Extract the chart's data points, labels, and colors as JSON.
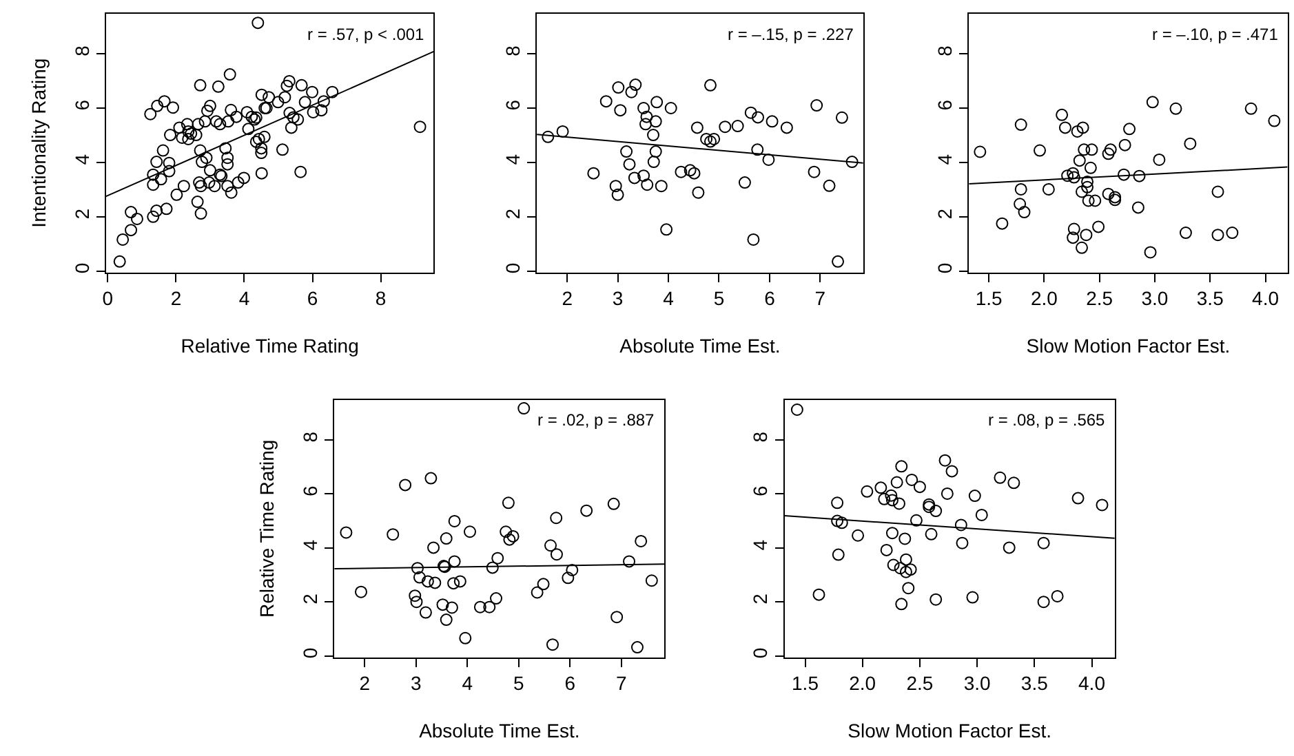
{
  "chart_data": [
    {
      "type": "scatter",
      "xlabel": "Relative Time Rating",
      "ylabel": "Intentionality Rating",
      "annotations": [
        "r = .57, p < .001"
      ],
      "marker": "circle",
      "grid": false,
      "xlim": [
        -0.05,
        9.55
      ],
      "ylim": [
        -0.05,
        9.48
      ],
      "xticks": [
        0,
        2,
        4,
        6,
        8
      ],
      "yticks": [
        0,
        2,
        4,
        6,
        8
      ],
      "series": [
        {
          "type": "scatter",
          "color": "#000000",
          "x": [
            0.35,
            0.44,
            0.68,
            0.68,
            0.86,
            1.25,
            1.33,
            1.33,
            1.33,
            1.43,
            1.43,
            1.45,
            1.56,
            1.62,
            1.66,
            1.72,
            1.8,
            1.8,
            1.83,
            1.91,
            2.02,
            2.1,
            2.18,
            2.23,
            2.33,
            2.36,
            2.36,
            2.44,
            2.59,
            2.63,
            2.65,
            2.71,
            2.71,
            2.73,
            2.68,
            2.73,
            2.76,
            2.85,
            2.89,
            2.92,
            2.97,
            3.0,
            3.0,
            3.13,
            3.24,
            3.18,
            3.29,
            3.29,
            3.33,
            3.45,
            3.51,
            3.53,
            3.51,
            3.51,
            3.58,
            3.61,
            3.62,
            3.77,
            3.82,
            3.99,
            4.08,
            4.12,
            4.22,
            4.3,
            4.35,
            4.4,
            4.35,
            4.43,
            4.51,
            4.5,
            4.5,
            4.51,
            4.59,
            4.6,
            4.65,
            4.72,
            4.99,
            5.12,
            5.19,
            5.25,
            5.32,
            5.33,
            5.38,
            5.44,
            5.57,
            5.65,
            5.68,
            5.78,
            5.99,
            6.02,
            6.26,
            6.33,
            6.58,
            9.15
          ],
          "values": [
            0.35,
            1.16,
            1.51,
            2.17,
            1.92,
            5.78,
            3.18,
            3.55,
            2.0,
            4.02,
            2.22,
            6.08,
            3.38,
            4.44,
            6.25,
            2.29,
            3.68,
            3.98,
            5.01,
            6.02,
            2.81,
            5.28,
            4.91,
            3.13,
            5.41,
            5.14,
            4.86,
            5.06,
            5.01,
            2.55,
            5.41,
            4.44,
            6.84,
            2.12,
            3.26,
            3.13,
            4.02,
            5.51,
            4.17,
            5.9,
            3.26,
            6.08,
            3.71,
            3.13,
            6.79,
            5.51,
            5.41,
            3.55,
            3.5,
            4.52,
            3.13,
            5.51,
            4.17,
            3.93,
            7.24,
            5.93,
            2.89,
            5.68,
            3.26,
            3.43,
            5.85,
            5.23,
            5.68,
            5.58,
            5.65,
            9.14,
            4.76,
            4.86,
            6.49,
            4.52,
            4.35,
            3.6,
            4.94,
            6.0,
            6.0,
            6.4,
            6.22,
            4.47,
            6.4,
            6.82,
            6.99,
            5.82,
            5.28,
            5.66,
            5.58,
            3.65,
            6.84,
            6.22,
            6.59,
            5.85,
            5.92,
            6.25,
            6.59,
            5.31
          ]
        },
        {
          "type": "line",
          "color": "#000000",
          "marker": "none",
          "x": [
            -0.05,
            9.55
          ],
          "values": [
            2.75,
            8.08
          ]
        }
      ]
    },
    {
      "type": "scatter",
      "xlabel": "Absolute Time Est.",
      "annotations": [
        "r = –.15, p = .227"
      ],
      "marker": "circle",
      "grid": false,
      "xlim": [
        1.4,
        7.85
      ],
      "ylim": [
        -0.05,
        9.48
      ],
      "xticks": [
        2,
        3,
        4,
        5,
        6,
        7
      ],
      "yticks": [
        0,
        2,
        4,
        6,
        8
      ],
      "series": [
        {
          "type": "scatter",
          "color": "#000000",
          "x": [
            1.62,
            1.91,
            2.52,
            2.77,
            2.96,
            3.0,
            3.01,
            3.05,
            3.17,
            3.23,
            3.27,
            3.33,
            3.35,
            3.51,
            3.51,
            3.57,
            3.55,
            3.58,
            3.7,
            3.71,
            3.75,
            3.75,
            3.77,
            3.86,
            3.96,
            4.05,
            4.25,
            4.43,
            4.51,
            4.57,
            4.59,
            4.75,
            4.83,
            4.83,
            4.9,
            5.12,
            5.37,
            5.51,
            5.63,
            5.68,
            5.77,
            5.76,
            5.98,
            6.05,
            6.34,
            6.88,
            6.93,
            7.18,
            7.35,
            7.43,
            7.63
          ],
          "values": [
            4.94,
            5.14,
            3.6,
            6.25,
            3.13,
            2.81,
            6.76,
            5.92,
            4.4,
            3.93,
            6.59,
            3.43,
            6.86,
            6.0,
            3.51,
            5.68,
            5.41,
            3.18,
            5.01,
            4.02,
            4.4,
            5.51,
            6.22,
            3.13,
            1.53,
            6.0,
            3.65,
            3.71,
            3.6,
            5.28,
            2.89,
            4.86,
            6.84,
            4.77,
            4.86,
            5.31,
            5.34,
            3.26,
            5.83,
            1.16,
            5.66,
            4.47,
            4.1,
            5.51,
            5.28,
            3.65,
            6.1,
            3.14,
            0.35,
            5.65,
            4.02
          ]
        },
        {
          "type": "line",
          "color": "#000000",
          "marker": "none",
          "x": [
            1.4,
            7.85
          ],
          "values": [
            5.03,
            3.98
          ]
        }
      ]
    },
    {
      "type": "scatter",
      "xlabel": "Slow Motion Factor Est.",
      "annotations": [
        "r = –.10, p = .471"
      ],
      "marker": "circle",
      "grid": false,
      "xlim": [
        1.32,
        4.2
      ],
      "ylim": [
        -0.05,
        9.48
      ],
      "xticks": [
        1.5,
        {
          "value": 2,
          "label": "2.0"
        },
        2.5,
        {
          "value": 3,
          "label": "3.0"
        },
        3.5,
        {
          "value": 4,
          "label": "4.0"
        }
      ],
      "yticks": [
        0,
        2,
        4,
        6,
        8
      ],
      "series": [
        {
          "type": "scatter",
          "color": "#000000",
          "x": [
            1.42,
            1.62,
            1.79,
            1.79,
            1.78,
            1.82,
            1.96,
            2.04,
            2.16,
            2.19,
            2.21,
            2.26,
            2.27,
            2.3,
            2.35,
            2.32,
            2.27,
            2.26,
            2.34,
            2.34,
            2.36,
            2.39,
            2.39,
            2.38,
            2.43,
            2.42,
            2.4,
            2.46,
            2.49,
            2.58,
            2.58,
            2.6,
            2.64,
            2.64,
            2.73,
            2.72,
            2.77,
            2.85,
            2.86,
            2.96,
            2.98,
            3.04,
            3.19,
            3.28,
            3.32,
            3.57,
            3.57,
            3.7,
            3.87,
            4.08
          ],
          "values": [
            4.39,
            1.75,
            5.39,
            3.01,
            2.47,
            2.17,
            4.44,
            3.01,
            5.75,
            5.28,
            3.51,
            3.6,
            3.45,
            5.14,
            5.28,
            4.07,
            1.55,
            1.23,
            2.92,
            0.86,
            4.47,
            3.29,
            3.09,
            1.33,
            4.47,
            3.8,
            2.59,
            2.59,
            1.63,
            2.84,
            4.32,
            4.47,
            2.72,
            2.62,
            4.64,
            3.55,
            5.23,
            2.34,
            3.5,
            0.69,
            6.22,
            4.1,
            5.98,
            1.41,
            4.69,
            2.92,
            1.33,
            1.41,
            5.98,
            5.53
          ]
        },
        {
          "type": "line",
          "color": "#000000",
          "marker": "none",
          "x": [
            1.32,
            4.2
          ],
          "values": [
            3.21,
            3.83
          ]
        }
      ]
    },
    {
      "type": "scatter",
      "xlabel": "Absolute Time Est.",
      "ylabel": "Relative Time Rating",
      "annotations": [
        "r = .02, p = .887"
      ],
      "marker": "circle",
      "grid": false,
      "xlim": [
        1.41,
        7.84
      ],
      "ylim": [
        -0.05,
        9.48
      ],
      "xticks": [
        2,
        3,
        4,
        5,
        6,
        7
      ],
      "yticks": [
        0,
        2,
        4,
        6,
        8
      ],
      "series": [
        {
          "type": "scatter",
          "color": "#000000",
          "x": [
            1.64,
            1.93,
            2.55,
            2.79,
            2.98,
            3.01,
            3.03,
            3.07,
            3.19,
            3.23,
            3.29,
            3.34,
            3.37,
            3.52,
            3.54,
            3.56,
            3.59,
            3.59,
            3.7,
            3.73,
            3.75,
            3.75,
            3.86,
            3.96,
            4.05,
            4.25,
            4.43,
            4.49,
            4.56,
            4.59,
            4.75,
            4.8,
            4.82,
            4.89,
            5.1,
            5.62,
            5.66,
            5.73,
            5.74,
            5.48,
            5.36,
            5.96,
            6.04,
            6.32,
            6.85,
            6.91,
            7.15,
            7.31,
            7.38,
            7.59
          ],
          "values": [
            4.57,
            2.37,
            4.5,
            6.33,
            2.23,
            2.0,
            3.25,
            2.91,
            1.61,
            2.76,
            6.58,
            4.01,
            2.71,
            1.9,
            3.33,
            3.3,
            4.35,
            1.34,
            1.79,
            2.69,
            3.5,
            4.99,
            2.76,
            0.66,
            4.6,
            1.81,
            1.81,
            3.27,
            2.13,
            3.62,
            4.6,
            5.67,
            4.31,
            4.43,
            9.17,
            4.09,
            0.42,
            5.11,
            3.76,
            2.66,
            2.35,
            2.89,
            3.18,
            5.38,
            5.63,
            1.44,
            3.5,
            0.32,
            4.25,
            2.79
          ]
        },
        {
          "type": "line",
          "color": "#000000",
          "marker": "none",
          "x": [
            1.41,
            7.84
          ],
          "values": [
            3.23,
            3.4
          ]
        }
      ]
    },
    {
      "type": "scatter",
      "xlabel": "Slow Motion Factor Est.",
      "annotations": [
        "r = .08, p = .565"
      ],
      "marker": "circle",
      "grid": false,
      "xlim": [
        1.32,
        4.2
      ],
      "ylim": [
        -0.05,
        9.48
      ],
      "xticks": [
        1.5,
        {
          "value": 2,
          "label": "2.0"
        },
        2.5,
        {
          "value": 3,
          "label": "3.0"
        },
        3.5,
        {
          "value": 4,
          "label": "4.0"
        }
      ],
      "yticks": [
        0,
        2,
        4,
        6,
        8
      ],
      "series": [
        {
          "type": "scatter",
          "color": "#000000",
          "x": [
            1.43,
            1.62,
            1.78,
            1.78,
            1.82,
            1.79,
            1.96,
            2.04,
            2.16,
            2.19,
            2.25,
            2.26,
            2.21,
            2.26,
            2.3,
            2.32,
            2.27,
            2.34,
            2.33,
            2.37,
            2.38,
            2.38,
            2.42,
            2.34,
            2.4,
            2.43,
            2.5,
            2.47,
            2.58,
            2.58,
            2.6,
            2.64,
            2.64,
            2.72,
            2.74,
            2.78,
            2.86,
            2.87,
            2.96,
            2.98,
            3.04,
            3.2,
            3.28,
            3.32,
            3.58,
            3.58,
            3.7,
            3.88,
            4.09
          ],
          "values": [
            9.12,
            2.27,
            5.67,
            5.0,
            4.93,
            3.75,
            4.46,
            6.09,
            6.23,
            5.81,
            5.94,
            5.77,
            3.92,
            4.55,
            6.43,
            5.64,
            3.37,
            7.02,
            3.25,
            4.34,
            3.57,
            3.11,
            3.2,
            1.92,
            2.51,
            6.52,
            6.26,
            5.02,
            5.61,
            5.52,
            4.51,
            5.37,
            2.09,
            7.24,
            6.01,
            6.84,
            4.85,
            4.18,
            2.17,
            5.93,
            5.22,
            6.6,
            4.01,
            6.41,
            4.18,
            2.0,
            2.21,
            5.84,
            5.59
          ]
        },
        {
          "type": "line",
          "color": "#000000",
          "marker": "none",
          "x": [
            1.32,
            4.2
          ],
          "values": [
            5.19,
            4.36
          ]
        }
      ]
    }
  ]
}
